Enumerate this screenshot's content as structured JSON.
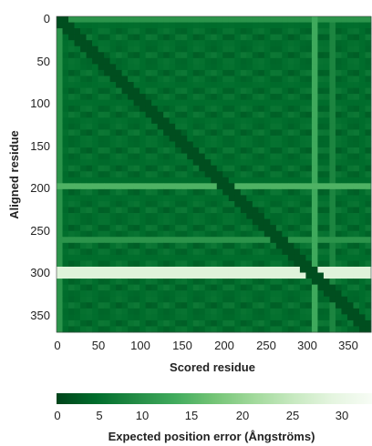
{
  "chart_data": {
    "type": "heatmap",
    "title": "",
    "xlabel": "Scored residue",
    "ylabel": "Aligned residue",
    "x_range": [
      0,
      371
    ],
    "y_range": [
      0,
      371
    ],
    "y_inverted": true,
    "x_ticks": [
      "0",
      "50",
      "100",
      "150",
      "200",
      "250",
      "300",
      "350"
    ],
    "y_ticks": [
      "0",
      "50",
      "100",
      "150",
      "200",
      "250",
      "300",
      "350"
    ],
    "colorbar": {
      "label": "Expected position error (Ångströms)",
      "ticks": [
        "0",
        "5",
        "10",
        "15",
        "20",
        "25",
        "30"
      ],
      "range": [
        0,
        31.75
      ],
      "colormap": "Greens_r",
      "low_color": "#0b5a25",
      "high_color": "#f7fcf5"
    },
    "base_error": 4,
    "diagonal_error": 0,
    "high_error_bands": [
      {
        "axis": "aligned",
        "from": 295,
        "to": 308,
        "value": 27
      },
      {
        "axis": "aligned",
        "from": 97,
        "to": 101,
        "value": 14
      },
      {
        "axis": "aligned",
        "from": 197,
        "to": 203,
        "value": 13
      },
      {
        "axis": "aligned",
        "from": 259,
        "to": 263,
        "value": 9
      },
      {
        "axis": "aligned",
        "from": 279,
        "to": 283,
        "value": 9
      },
      {
        "axis": "aligned",
        "from": 340,
        "to": 344,
        "value": 8
      },
      {
        "axis": "aligned",
        "from": 0,
        "to": 4,
        "value": 9
      },
      {
        "axis": "scored",
        "from": 302,
        "to": 310,
        "value": 13
      },
      {
        "axis": "scored",
        "from": 325,
        "to": 329,
        "value": 8
      },
      {
        "axis": "scored",
        "from": 0,
        "to": 5,
        "value": 10
      }
    ]
  }
}
